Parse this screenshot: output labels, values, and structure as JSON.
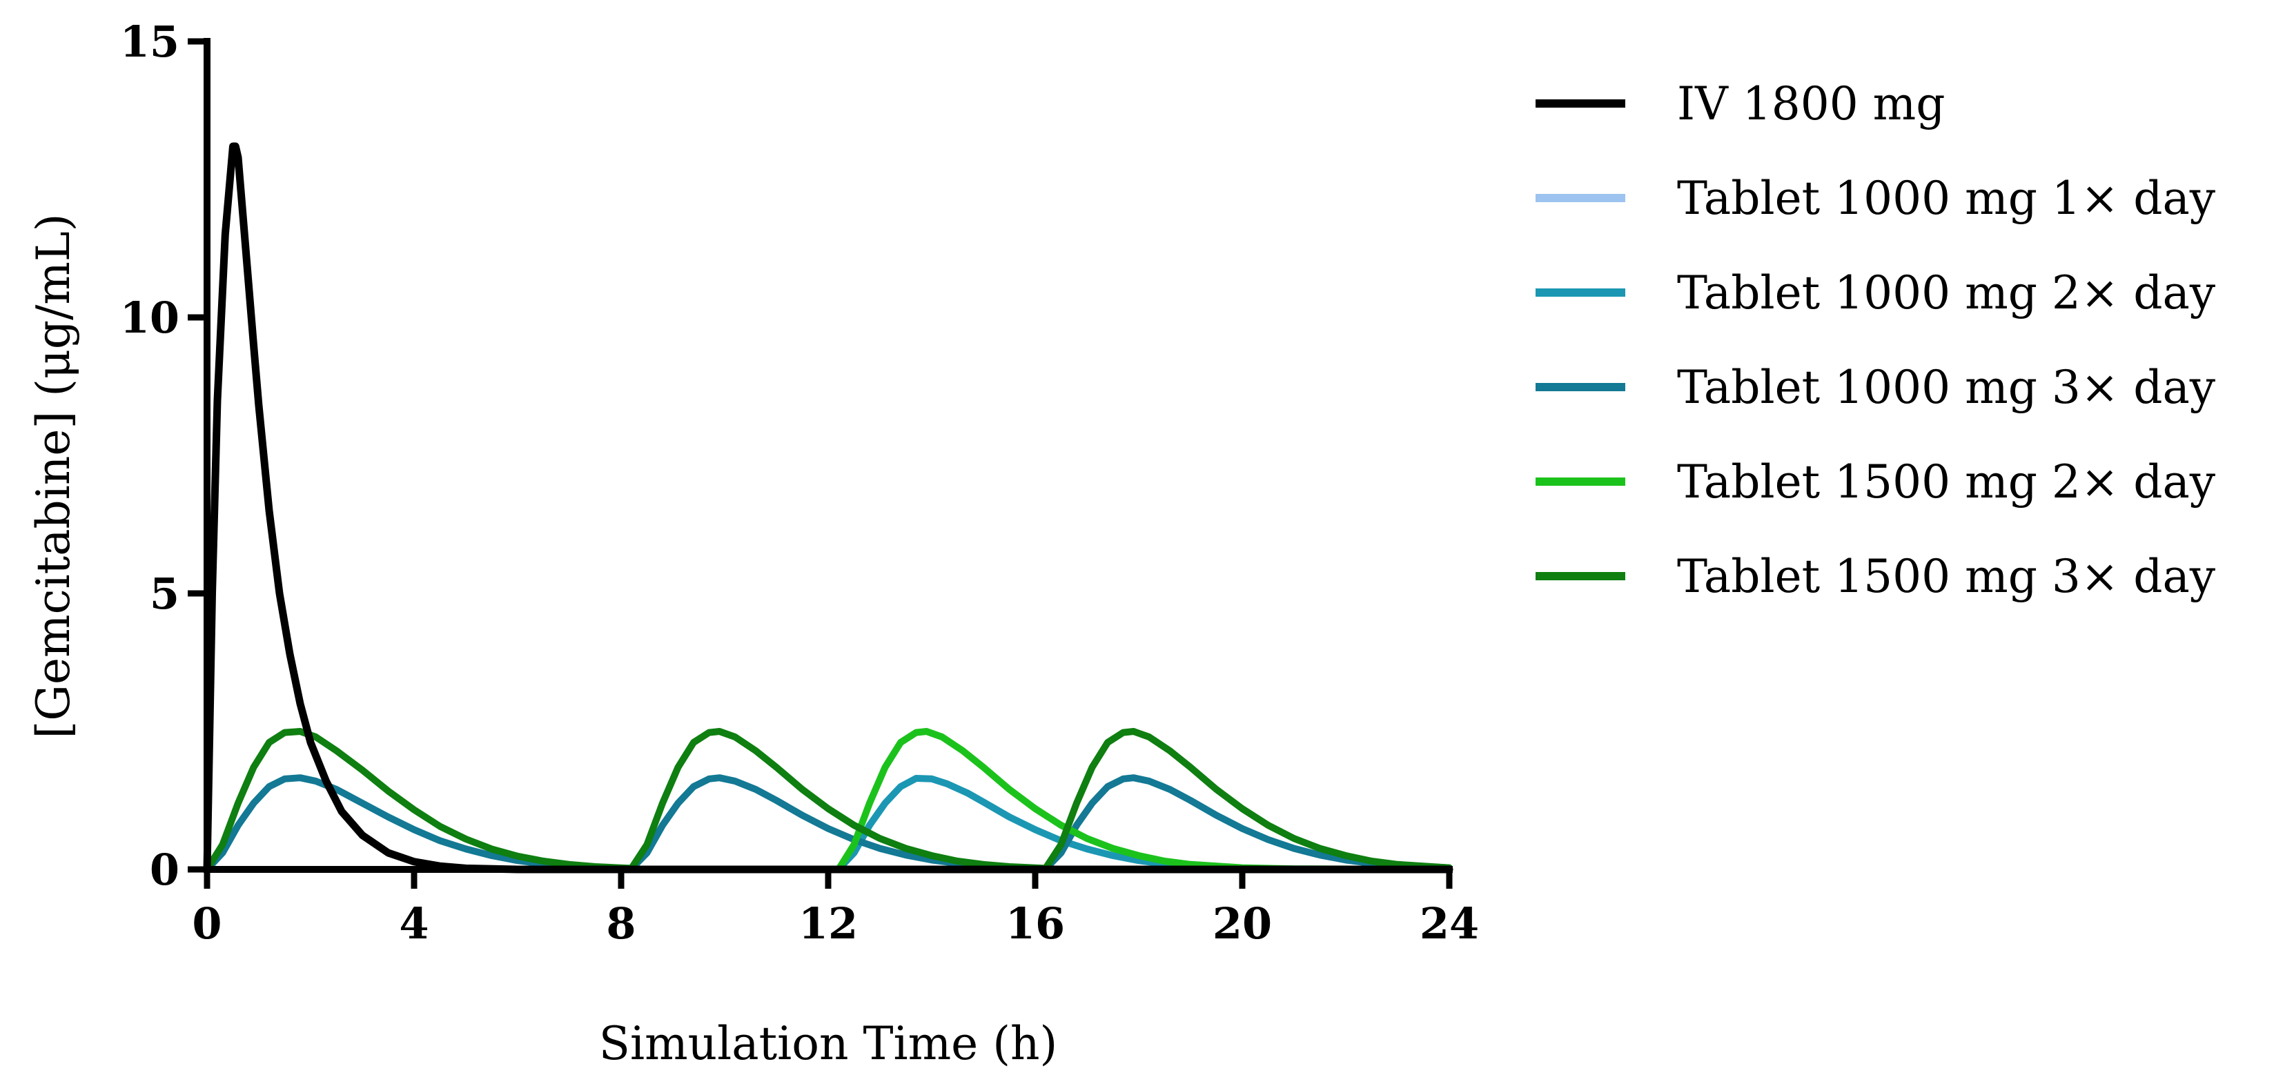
{
  "chart_data": {
    "type": "line",
    "title": "",
    "xlabel": "Simulation Time (h)",
    "ylabel": "[Gemcitabine] (μg/mL)",
    "xlim": [
      0,
      24
    ],
    "ylim": [
      0,
      15
    ],
    "xticks": [
      0,
      4,
      8,
      12,
      16,
      20,
      24
    ],
    "yticks": [
      0,
      5,
      10,
      15
    ],
    "grid": false,
    "legend_position": "right",
    "series": [
      {
        "name": "IV 1800 mg",
        "color": "#000000",
        "points": [
          [
            0,
            0
          ],
          [
            0.1,
            5.0
          ],
          [
            0.2,
            8.5
          ],
          [
            0.35,
            11.5
          ],
          [
            0.5,
            13.1
          ],
          [
            0.55,
            13.1
          ],
          [
            0.6,
            12.9
          ],
          [
            0.75,
            11.2
          ],
          [
            0.9,
            9.5
          ],
          [
            1.0,
            8.4
          ],
          [
            1.2,
            6.5
          ],
          [
            1.4,
            5.0
          ],
          [
            1.6,
            3.9
          ],
          [
            1.8,
            3.0
          ],
          [
            2.0,
            2.3
          ],
          [
            2.3,
            1.6
          ],
          [
            2.6,
            1.05
          ],
          [
            3.0,
            0.62
          ],
          [
            3.5,
            0.3
          ],
          [
            4.0,
            0.14
          ],
          [
            4.5,
            0.06
          ],
          [
            5.0,
            0.02
          ],
          [
            6.0,
            0
          ],
          [
            24,
            0
          ]
        ]
      },
      {
        "name": "Tablet 1000 mg 1× day",
        "color": "#9DC3F0",
        "points": [
          [
            0,
            0
          ],
          [
            24,
            0
          ]
        ]
      },
      {
        "name": "Tablet 1000 mg 2× day",
        "color": "#1B97B3",
        "points": [
          [
            0,
            0
          ],
          [
            12.2,
            0
          ],
          [
            12.5,
            0.3
          ],
          [
            12.8,
            0.8
          ],
          [
            13.1,
            1.2
          ],
          [
            13.4,
            1.5
          ],
          [
            13.7,
            1.65
          ],
          [
            14.0,
            1.64
          ],
          [
            14.3,
            1.55
          ],
          [
            14.7,
            1.38
          ],
          [
            15.0,
            1.22
          ],
          [
            15.5,
            0.95
          ],
          [
            16.0,
            0.72
          ],
          [
            16.5,
            0.52
          ],
          [
            17.0,
            0.37
          ],
          [
            17.5,
            0.25
          ],
          [
            18.0,
            0.16
          ],
          [
            18.5,
            0.1
          ],
          [
            19.0,
            0.05
          ],
          [
            20.0,
            0.01
          ],
          [
            24,
            0
          ]
        ]
      },
      {
        "name": "Tablet 1000 mg 3× day",
        "color": "#137994",
        "points": [
          [
            0,
            0
          ],
          [
            0.3,
            0.3
          ],
          [
            0.6,
            0.8
          ],
          [
            0.9,
            1.2
          ],
          [
            1.2,
            1.5
          ],
          [
            1.5,
            1.64
          ],
          [
            1.8,
            1.66
          ],
          [
            2.1,
            1.6
          ],
          [
            2.5,
            1.45
          ],
          [
            3.0,
            1.2
          ],
          [
            3.5,
            0.95
          ],
          [
            4.0,
            0.72
          ],
          [
            4.5,
            0.52
          ],
          [
            5.0,
            0.37
          ],
          [
            5.5,
            0.25
          ],
          [
            6.0,
            0.16
          ],
          [
            6.5,
            0.1
          ],
          [
            7.0,
            0.06
          ],
          [
            7.5,
            0.03
          ],
          [
            8.2,
            0.01
          ],
          [
            8.5,
            0.3
          ],
          [
            8.8,
            0.8
          ],
          [
            9.1,
            1.2
          ],
          [
            9.4,
            1.5
          ],
          [
            9.7,
            1.64
          ],
          [
            9.9,
            1.66
          ],
          [
            10.2,
            1.6
          ],
          [
            10.6,
            1.45
          ],
          [
            11.0,
            1.25
          ],
          [
            11.5,
            0.98
          ],
          [
            12.0,
            0.74
          ],
          [
            12.5,
            0.54
          ],
          [
            13.0,
            0.38
          ],
          [
            13.5,
            0.26
          ],
          [
            14.0,
            0.17
          ],
          [
            14.5,
            0.11
          ],
          [
            15.0,
            0.06
          ],
          [
            15.5,
            0.03
          ],
          [
            16.2,
            0.01
          ],
          [
            16.5,
            0.3
          ],
          [
            16.8,
            0.8
          ],
          [
            17.1,
            1.2
          ],
          [
            17.4,
            1.5
          ],
          [
            17.7,
            1.64
          ],
          [
            17.9,
            1.66
          ],
          [
            18.2,
            1.6
          ],
          [
            18.6,
            1.45
          ],
          [
            19.0,
            1.25
          ],
          [
            19.5,
            0.98
          ],
          [
            20.0,
            0.74
          ],
          [
            20.5,
            0.54
          ],
          [
            21.0,
            0.38
          ],
          [
            21.5,
            0.26
          ],
          [
            22.0,
            0.17
          ],
          [
            22.5,
            0.11
          ],
          [
            23.0,
            0.07
          ],
          [
            24.0,
            0.03
          ]
        ]
      },
      {
        "name": "Tablet 1500 mg 2× day",
        "color": "#1CC21C",
        "points": [
          [
            0,
            0
          ],
          [
            12.2,
            0
          ],
          [
            12.5,
            0.45
          ],
          [
            12.8,
            1.2
          ],
          [
            13.1,
            1.85
          ],
          [
            13.4,
            2.3
          ],
          [
            13.7,
            2.48
          ],
          [
            13.9,
            2.5
          ],
          [
            14.2,
            2.4
          ],
          [
            14.6,
            2.15
          ],
          [
            15.0,
            1.85
          ],
          [
            15.5,
            1.45
          ],
          [
            16.0,
            1.1
          ],
          [
            16.5,
            0.8
          ],
          [
            17.0,
            0.56
          ],
          [
            17.5,
            0.38
          ],
          [
            18.0,
            0.25
          ],
          [
            18.5,
            0.15
          ],
          [
            19.0,
            0.09
          ],
          [
            20.0,
            0.03
          ],
          [
            21.0,
            0.01
          ],
          [
            24,
            0
          ]
        ]
      },
      {
        "name": "Tablet 1500 mg 3× day",
        "color": "#0E7F10",
        "points": [
          [
            0,
            0
          ],
          [
            0.3,
            0.45
          ],
          [
            0.6,
            1.2
          ],
          [
            0.9,
            1.85
          ],
          [
            1.2,
            2.3
          ],
          [
            1.5,
            2.48
          ],
          [
            1.8,
            2.5
          ],
          [
            2.1,
            2.4
          ],
          [
            2.5,
            2.15
          ],
          [
            3.0,
            1.8
          ],
          [
            3.5,
            1.42
          ],
          [
            4.0,
            1.08
          ],
          [
            4.5,
            0.78
          ],
          [
            5.0,
            0.55
          ],
          [
            5.5,
            0.37
          ],
          [
            6.0,
            0.24
          ],
          [
            6.5,
            0.15
          ],
          [
            7.0,
            0.09
          ],
          [
            7.5,
            0.05
          ],
          [
            8.2,
            0.02
          ],
          [
            8.5,
            0.45
          ],
          [
            8.8,
            1.2
          ],
          [
            9.1,
            1.85
          ],
          [
            9.4,
            2.3
          ],
          [
            9.7,
            2.48
          ],
          [
            9.9,
            2.5
          ],
          [
            10.2,
            2.4
          ],
          [
            10.6,
            2.15
          ],
          [
            11.0,
            1.85
          ],
          [
            11.5,
            1.45
          ],
          [
            12.0,
            1.1
          ],
          [
            12.5,
            0.8
          ],
          [
            13.0,
            0.56
          ],
          [
            13.5,
            0.38
          ],
          [
            14.0,
            0.25
          ],
          [
            14.5,
            0.15
          ],
          [
            15.0,
            0.09
          ],
          [
            15.5,
            0.05
          ],
          [
            16.2,
            0.02
          ],
          [
            16.5,
            0.45
          ],
          [
            16.8,
            1.2
          ],
          [
            17.1,
            1.85
          ],
          [
            17.4,
            2.3
          ],
          [
            17.7,
            2.48
          ],
          [
            17.9,
            2.5
          ],
          [
            18.2,
            2.4
          ],
          [
            18.6,
            2.15
          ],
          [
            19.0,
            1.85
          ],
          [
            19.5,
            1.45
          ],
          [
            20.0,
            1.1
          ],
          [
            20.5,
            0.8
          ],
          [
            21.0,
            0.56
          ],
          [
            21.5,
            0.38
          ],
          [
            22.0,
            0.25
          ],
          [
            22.5,
            0.15
          ],
          [
            23.0,
            0.09
          ],
          [
            24.0,
            0.03
          ]
        ]
      }
    ]
  }
}
